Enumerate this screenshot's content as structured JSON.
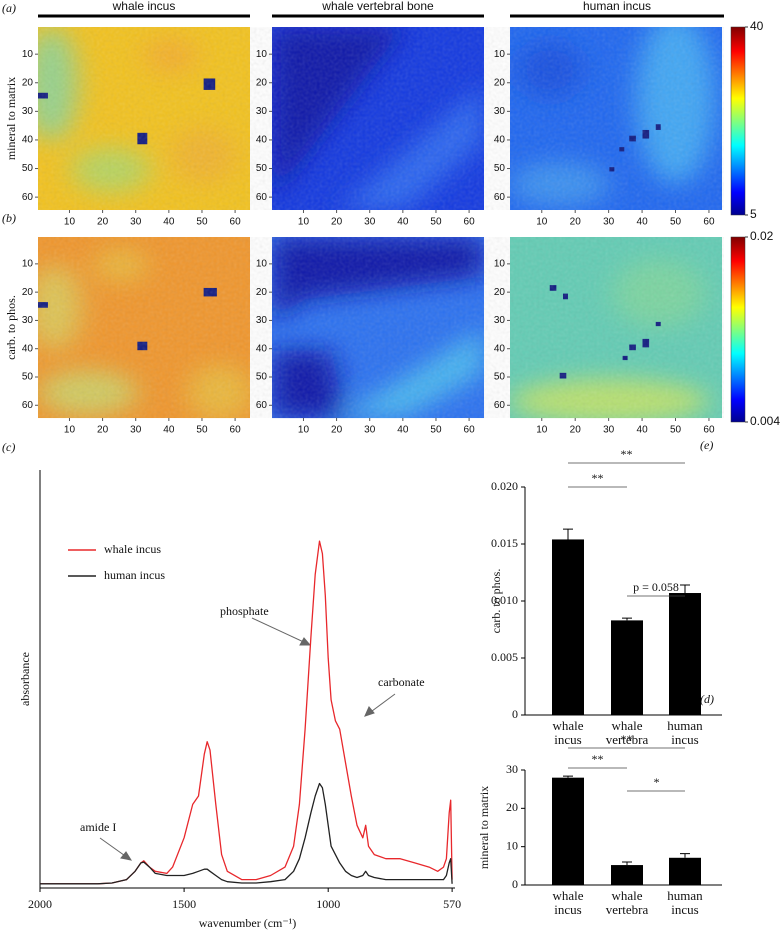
{
  "chart_data": [
    {
      "type": "heatmap",
      "panel_label": "(a)",
      "title": "whale incus",
      "ylabel": "mineral to matrix",
      "xlim": [
        0.5,
        64.5
      ],
      "ylim": [
        0.5,
        64.5
      ],
      "xticks": [
        10,
        20,
        30,
        40,
        50,
        60
      ],
      "yticks": [
        10,
        20,
        30,
        40,
        50,
        60
      ]
    },
    {
      "type": "heatmap",
      "title": "whale vertebral bone",
      "xlim": [
        0.5,
        64.5
      ],
      "ylim": [
        0.5,
        64.5
      ],
      "xticks": [
        10,
        20,
        30,
        40,
        50,
        60
      ],
      "yticks": [
        10,
        20,
        30,
        40,
        50,
        60
      ]
    },
    {
      "type": "heatmap",
      "title": "human incus",
      "xlim": [
        0.5,
        64.5
      ],
      "ylim": [
        0.5,
        64.5
      ],
      "xticks": [
        10,
        20,
        30,
        40,
        50,
        60
      ],
      "yticks": [
        10,
        20,
        30,
        40,
        50,
        60
      ],
      "clim": [
        5,
        40
      ],
      "colorbar_ticks": [
        5,
        40
      ]
    },
    {
      "type": "heatmap",
      "panel_label": "(b)",
      "ylabel": "carb. to phos.",
      "xlim": [
        0.5,
        64.5
      ],
      "ylim": [
        0.5,
        64.5
      ],
      "xticks": [
        10,
        20,
        30,
        40,
        50,
        60
      ],
      "yticks": [
        10,
        20,
        30,
        40,
        50,
        60
      ]
    },
    {
      "type": "heatmap",
      "xlim": [
        0.5,
        64.5
      ],
      "ylim": [
        0.5,
        64.5
      ],
      "xticks": [
        10,
        20,
        30,
        40,
        50,
        60
      ],
      "yticks": [
        10,
        20,
        30,
        40,
        50,
        60
      ]
    },
    {
      "type": "heatmap",
      "xlim": [
        0.5,
        64.5
      ],
      "ylim": [
        0.5,
        64.5
      ],
      "xticks": [
        10,
        20,
        30,
        40,
        50,
        60
      ],
      "yticks": [
        10,
        20,
        30,
        40,
        50,
        60
      ],
      "clim": [
        0.004,
        0.02
      ],
      "colorbar_ticks": [
        0.004,
        0.02
      ]
    },
    {
      "type": "line",
      "panel_label": "(c)",
      "xlabel": "wavenumber (cm⁻¹)",
      "ylabel": "absorbance",
      "xlim": [
        2000,
        560
      ],
      "ylim": [
        0,
        1
      ],
      "xticks": [
        2000,
        1500,
        1000,
        570
      ],
      "x": [
        2000,
        1900,
        1800,
        1750,
        1700,
        1670,
        1650,
        1640,
        1620,
        1600,
        1560,
        1540,
        1500,
        1470,
        1450,
        1430,
        1420,
        1410,
        1390,
        1370,
        1350,
        1300,
        1250,
        1200,
        1150,
        1120,
        1100,
        1080,
        1060,
        1045,
        1030,
        1020,
        1010,
        1000,
        990,
        975,
        960,
        940,
        920,
        900,
        880,
        870,
        860,
        840,
        800,
        750,
        700,
        650,
        620,
        600,
        590,
        580,
        575,
        570
      ],
      "series": [
        {
          "name": "whale incus",
          "color": "#e8282c",
          "values": [
            0.01,
            0.01,
            0.01,
            0.012,
            0.02,
            0.04,
            0.06,
            0.065,
            0.05,
            0.04,
            0.035,
            0.05,
            0.12,
            0.2,
            0.22,
            0.32,
            0.35,
            0.33,
            0.2,
            0.08,
            0.04,
            0.02,
            0.02,
            0.03,
            0.05,
            0.1,
            0.2,
            0.38,
            0.6,
            0.75,
            0.83,
            0.8,
            0.7,
            0.55,
            0.45,
            0.4,
            0.38,
            0.3,
            0.22,
            0.15,
            0.12,
            0.15,
            0.1,
            0.08,
            0.07,
            0.07,
            0.06,
            0.05,
            0.04,
            0.05,
            0.07,
            0.18,
            0.21,
            0.02
          ]
        },
        {
          "name": "human incus",
          "color": "#222222",
          "values": [
            0.01,
            0.01,
            0.01,
            0.012,
            0.02,
            0.04,
            0.06,
            0.062,
            0.05,
            0.035,
            0.03,
            0.03,
            0.03,
            0.035,
            0.04,
            0.045,
            0.045,
            0.04,
            0.03,
            0.02,
            0.015,
            0.012,
            0.012,
            0.015,
            0.02,
            0.04,
            0.07,
            0.12,
            0.18,
            0.22,
            0.25,
            0.24,
            0.2,
            0.15,
            0.1,
            0.08,
            0.06,
            0.04,
            0.03,
            0.025,
            0.03,
            0.04,
            0.03,
            0.025,
            0.02,
            0.02,
            0.02,
            0.02,
            0.02,
            0.02,
            0.03,
            0.06,
            0.07,
            0.01
          ]
        }
      ],
      "annotations": [
        "phosphate",
        "carbonate",
        "amide I"
      ]
    },
    {
      "type": "bar",
      "panel_label": "(d)",
      "ylabel": "mineral to matrix",
      "categories": [
        "whale incus",
        "whale vertebra",
        "human incus"
      ],
      "values": [
        28,
        5.2,
        7.1
      ],
      "errors": [
        0.4,
        0.8,
        1.1
      ],
      "color": "#000000",
      "ylim": [
        0,
        30
      ],
      "yticks": [
        0,
        10,
        20,
        30
      ],
      "annotations": [
        "**",
        "**",
        "*"
      ]
    },
    {
      "type": "bar",
      "panel_label": "(e)",
      "ylabel": "carb. to phos.",
      "categories": [
        "whale incus",
        "whale vertebra",
        "human incus"
      ],
      "values": [
        0.0154,
        0.0083,
        0.0107
      ],
      "errors": [
        0.0009,
        0.0002,
        0.0007
      ],
      "color": "#000000",
      "ylim": [
        0,
        0.02
      ],
      "yticks": [
        0,
        {
          "value": 0.005,
          "label": "0.005"
        },
        {
          "value": 0.01,
          "label": "0.010"
        },
        {
          "value": 0.015,
          "label": "0.015"
        },
        {
          "value": 0.02,
          "label": "0.020"
        }
      ],
      "annotations": [
        "**",
        "**",
        "p = 0.058"
      ]
    }
  ]
}
